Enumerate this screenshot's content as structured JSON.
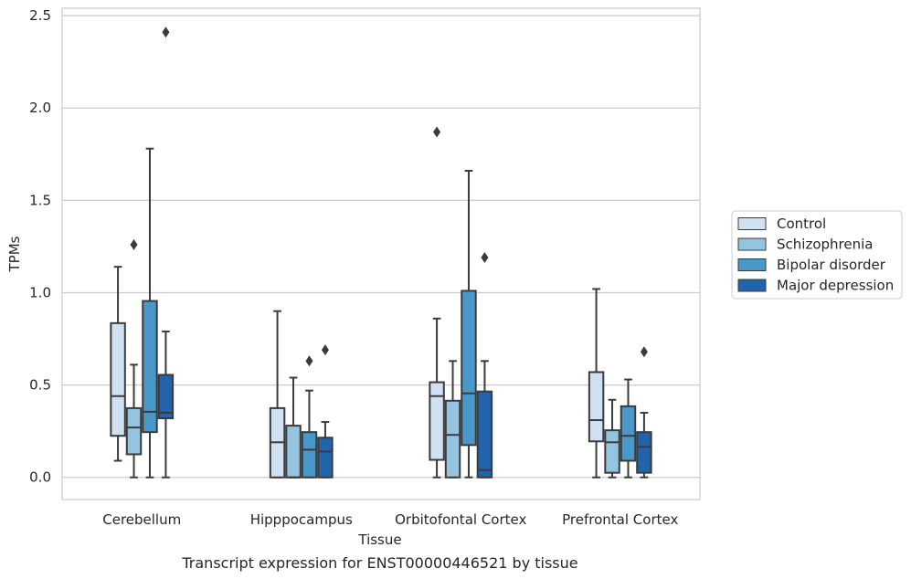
{
  "chart_data": {
    "type": "box",
    "caption": "Transcript expression for ENST00000446521 by tissue",
    "xlabel": "Tissue",
    "ylabel": "TPMs",
    "ylim": [
      -0.12,
      2.54
    ],
    "yticks": [
      0.0,
      0.5,
      1.0,
      1.5,
      2.0,
      2.5
    ],
    "ytick_labels": [
      "0.0",
      "0.5",
      "1.0",
      "1.5",
      "2.0",
      "2.5"
    ],
    "grid": "horizontal",
    "legend_position": "right",
    "categories": [
      "Cerebellum",
      "Hipppocampus",
      "Orbitofontal Cortex",
      "Prefrontal Cortex"
    ],
    "series": [
      {
        "name": "Control",
        "color": "#d0e1f2",
        "boxes": [
          {
            "whislo": 0.09,
            "q1": 0.225,
            "med": 0.44,
            "q3": 0.835,
            "whishi": 1.14,
            "fliers": []
          },
          {
            "whislo": 0.0,
            "q1": 0.0,
            "med": 0.19,
            "q3": 0.375,
            "whishi": 0.9,
            "fliers": []
          },
          {
            "whislo": 0.0,
            "q1": 0.095,
            "med": 0.44,
            "q3": 0.515,
            "whishi": 0.86,
            "fliers": [
              1.87
            ]
          },
          {
            "whislo": 0.0,
            "q1": 0.195,
            "med": 0.31,
            "q3": 0.57,
            "whishi": 1.02,
            "fliers": []
          }
        ]
      },
      {
        "name": "Schizophrenia",
        "color": "#94c4df",
        "boxes": [
          {
            "whislo": 0.0,
            "q1": 0.125,
            "med": 0.27,
            "q3": 0.375,
            "whishi": 0.61,
            "fliers": [
              1.26
            ]
          },
          {
            "whislo": 0.0,
            "q1": 0.0,
            "med": 0.0,
            "q3": 0.28,
            "whishi": 0.54,
            "fliers": []
          },
          {
            "whislo": 0.0,
            "q1": 0.0,
            "med": 0.23,
            "q3": 0.415,
            "whishi": 0.63,
            "fliers": []
          },
          {
            "whislo": 0.0,
            "q1": 0.025,
            "med": 0.19,
            "q3": 0.255,
            "whishi": 0.42,
            "fliers": []
          }
        ]
      },
      {
        "name": "Bipolar disorder",
        "color": "#4a98c9",
        "boxes": [
          {
            "whislo": 0.0,
            "q1": 0.245,
            "med": 0.355,
            "q3": 0.955,
            "whishi": 1.78,
            "fliers": []
          },
          {
            "whislo": 0.0,
            "q1": 0.0,
            "med": 0.15,
            "q3": 0.245,
            "whishi": 0.47,
            "fliers": [
              0.63
            ]
          },
          {
            "whislo": 0.0,
            "q1": 0.175,
            "med": 0.455,
            "q3": 1.01,
            "whishi": 1.66,
            "fliers": []
          },
          {
            "whislo": 0.0,
            "q1": 0.09,
            "med": 0.225,
            "q3": 0.385,
            "whishi": 0.53,
            "fliers": []
          }
        ]
      },
      {
        "name": "Major depression",
        "color": "#2164ab",
        "boxes": [
          {
            "whislo": 0.0,
            "q1": 0.32,
            "med": 0.35,
            "q3": 0.555,
            "whishi": 0.79,
            "fliers": [
              2.41
            ]
          },
          {
            "whislo": 0.0,
            "q1": 0.0,
            "med": 0.14,
            "q3": 0.215,
            "whishi": 0.3,
            "fliers": [
              0.69
            ]
          },
          {
            "whislo": 0.0,
            "q1": 0.0,
            "med": 0.04,
            "q3": 0.465,
            "whishi": 0.63,
            "fliers": [
              1.19
            ]
          },
          {
            "whislo": 0.0,
            "q1": 0.025,
            "med": 0.165,
            "q3": 0.245,
            "whishi": 0.35,
            "fliers": [
              0.68
            ]
          }
        ]
      }
    ]
  }
}
